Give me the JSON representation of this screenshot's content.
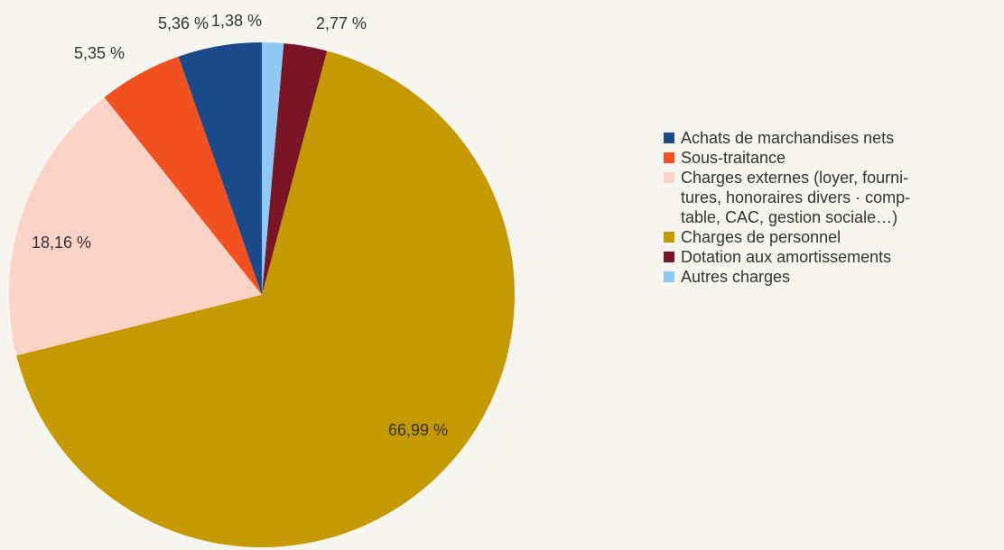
{
  "chart_data": {
    "type": "pie",
    "categories": [
      "Achats de marchandises nets",
      "Sous-traitance",
      "Charges externes (loyer, fourni-\ntures, honoraires divers · comp-\ntable, CAC, gestion sociale…)",
      "Charges de personnel",
      "Dotation aux amortissements",
      "Autres charges"
    ],
    "values": [
      5.36,
      5.35,
      18.16,
      66.99,
      2.77,
      1.38
    ],
    "value_labels": [
      "5,36 %",
      "5,35 %",
      "18,16 %",
      "66,99 %",
      "2,77 %",
      "1,38 %"
    ],
    "colors": [
      "#1b4a8a",
      "#f2501e",
      "#fdd3c6",
      "#c49a00",
      "#7b1425",
      "#8ec8f5"
    ],
    "legend": "right"
  }
}
